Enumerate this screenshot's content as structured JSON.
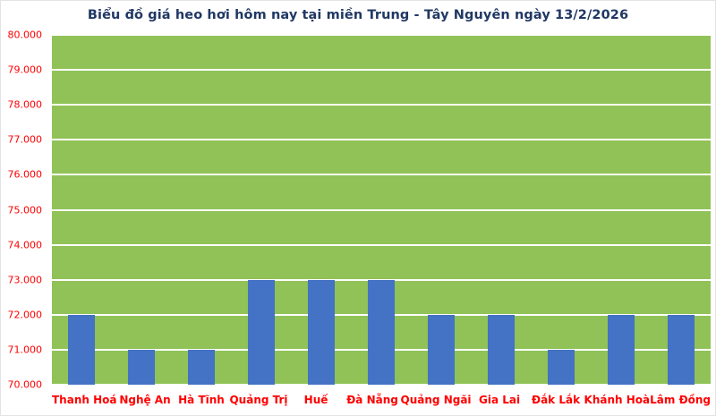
{
  "title": "Biểu đồ giá heo hơi hôm nay tại miền Trung - Tây Nguyên ngày 13/2/2026",
  "colors": {
    "title_text": "#203864",
    "axis_text": "#ff0000",
    "plot_background": "#90c257",
    "gridline": "#ffffff",
    "bar": "#4472c4",
    "figure_background": "#ffffff",
    "figure_border": "#e3e3e3"
  },
  "chart_data": {
    "type": "bar",
    "title": "Biểu đồ giá heo hơi hôm nay tại miền Trung - Tây Nguyên ngày 13/2/2026",
    "categories": [
      "Thanh Hoá",
      "Nghệ An",
      "Hà Tĩnh",
      "Quảng Trị",
      "Huế",
      "Đà Nẵng",
      "Quảng Ngãi",
      "Gia Lai",
      "Đắk Lắk",
      "Khánh Hoà",
      "Lâm Đồng"
    ],
    "values": [
      72000,
      71000,
      71000,
      73000,
      73000,
      73000,
      72000,
      72000,
      71000,
      72000,
      72000
    ],
    "xlabel": "",
    "ylabel": "",
    "ylim": [
      70000,
      80000
    ],
    "y_tick_values": [
      70000,
      71000,
      72000,
      73000,
      74000,
      75000,
      76000,
      77000,
      78000,
      79000,
      80000
    ],
    "y_tick_labels": [
      "70.000",
      "71.000",
      "72.000",
      "73.000",
      "74.000",
      "75.000",
      "76.000",
      "77.000",
      "78.000",
      "79.000",
      "80.000"
    ],
    "grid": true,
    "legend": "none"
  }
}
